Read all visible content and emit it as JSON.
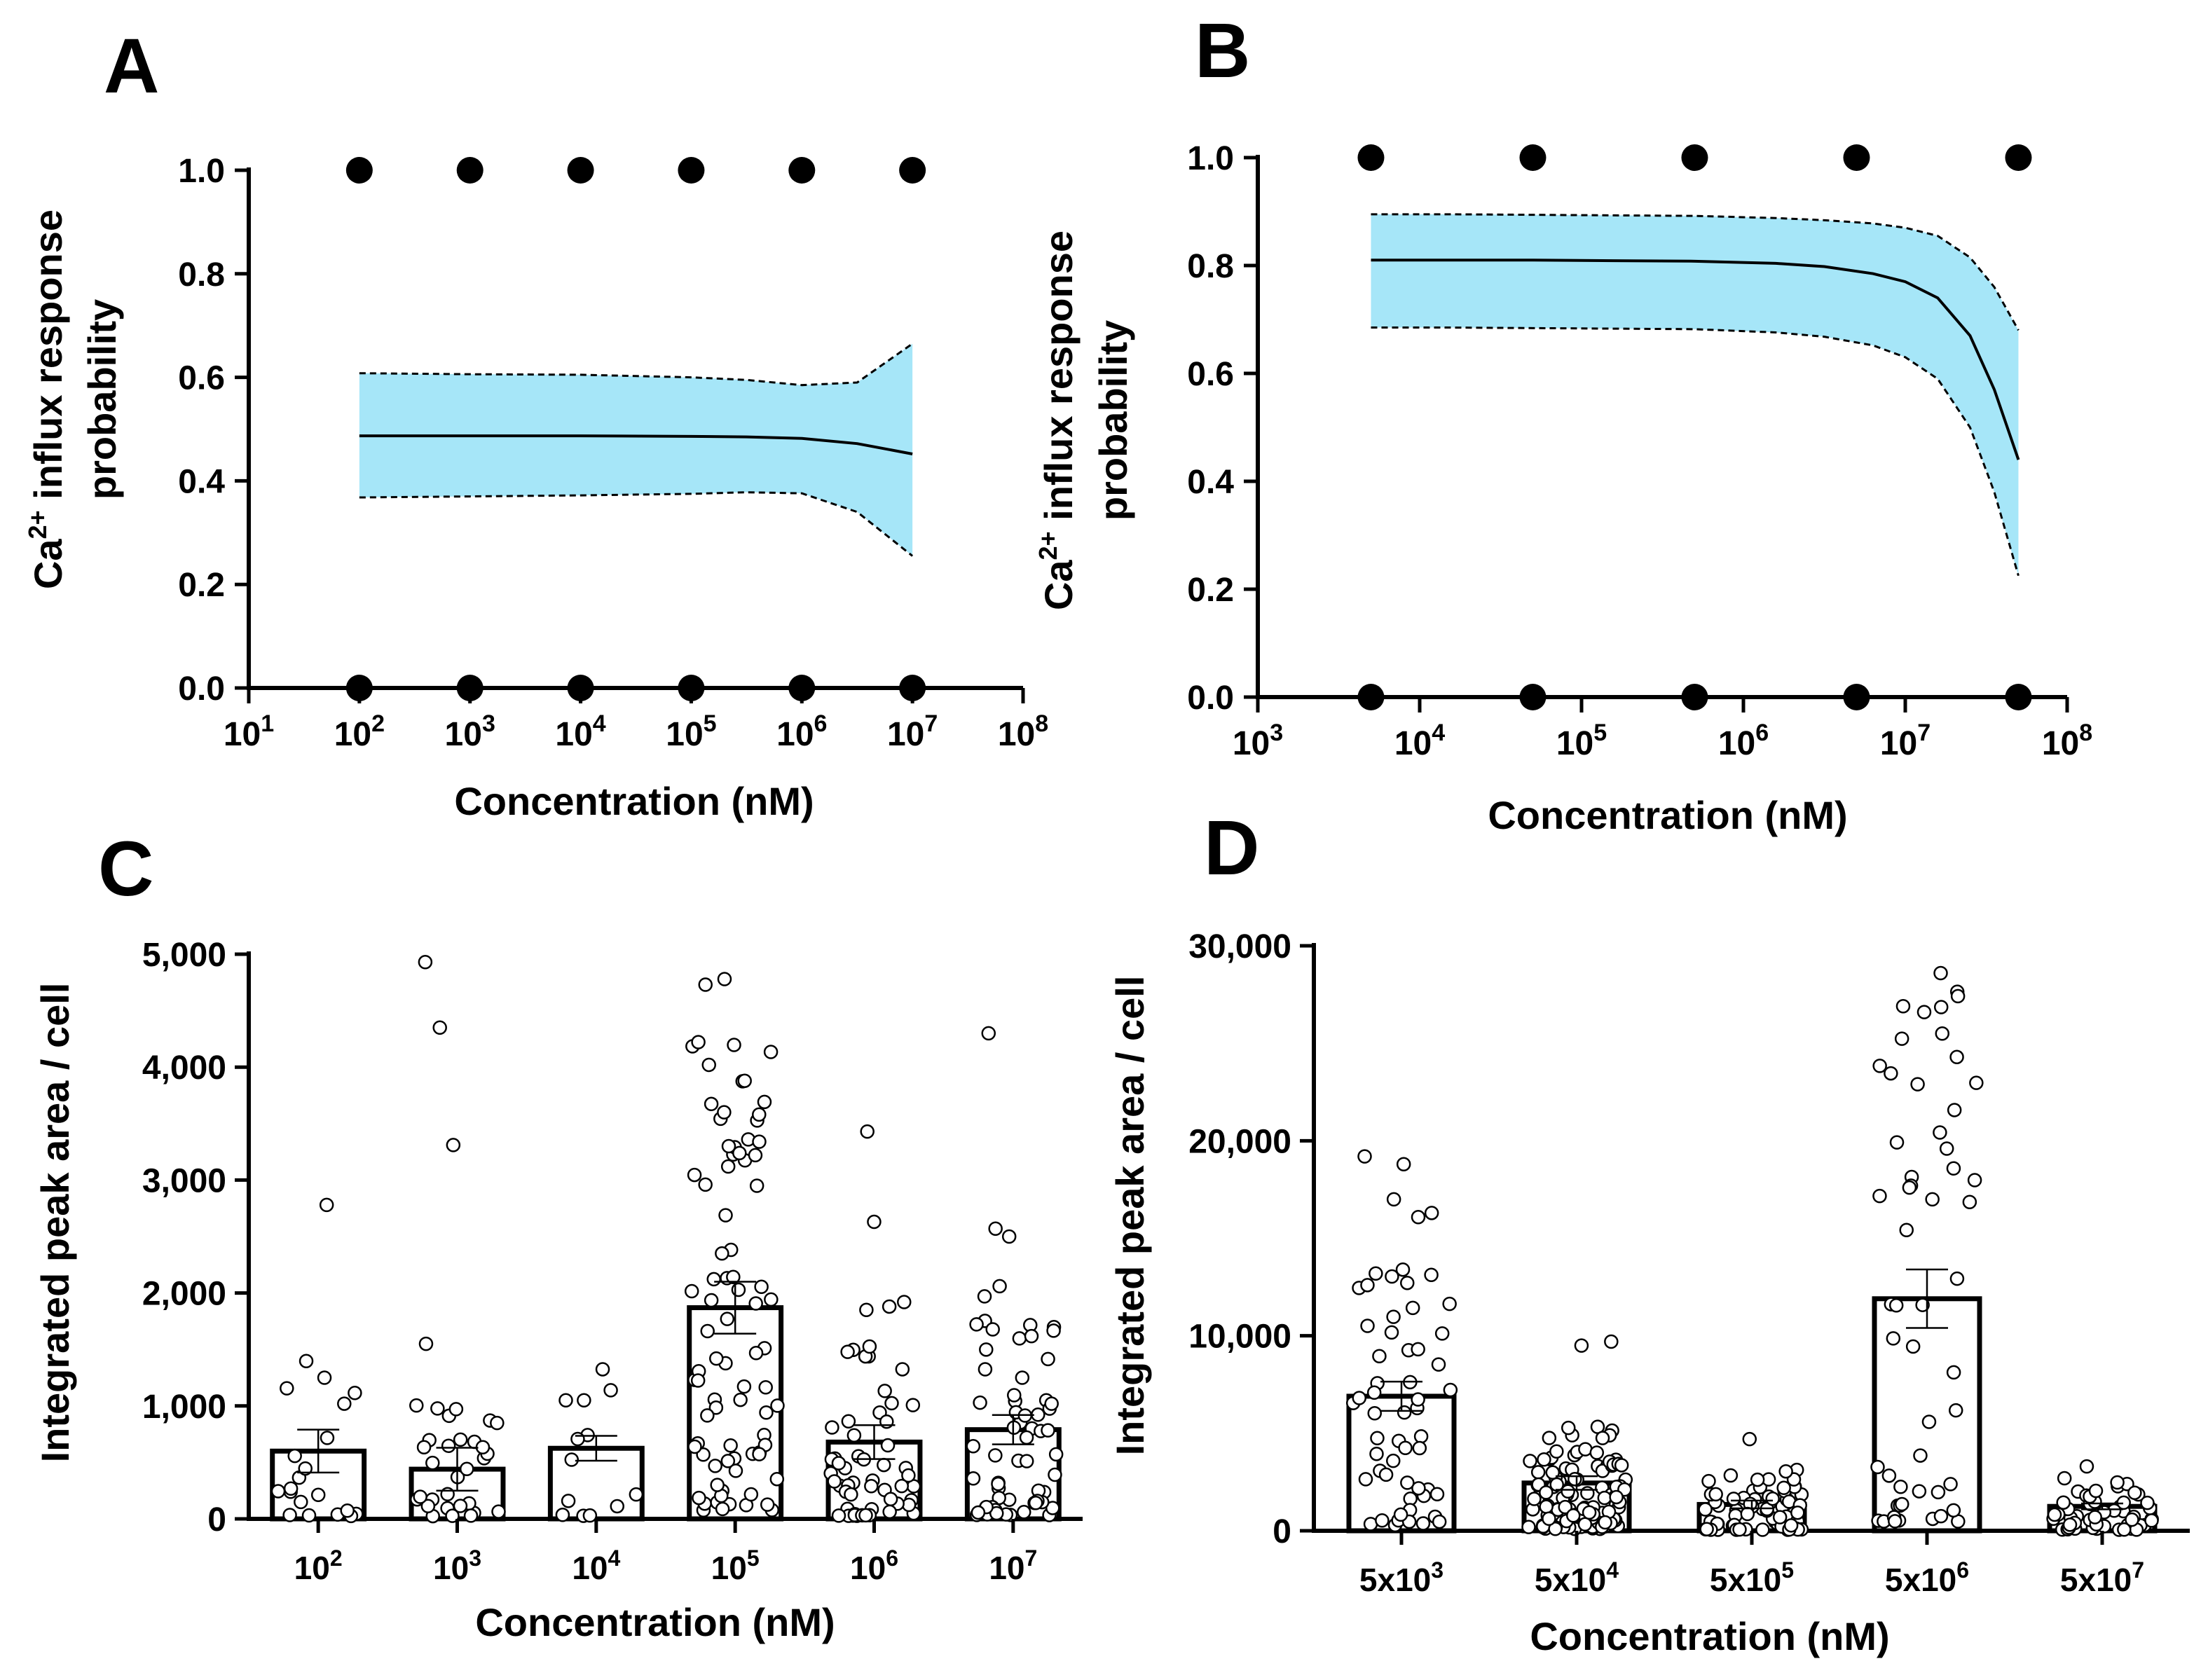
{
  "chart_data": [
    {
      "id": "A",
      "type": "scatter",
      "panel_label": "A",
      "xscale": "log",
      "xlim_exp": [
        1,
        8
      ],
      "ylim": [
        0,
        1
      ],
      "xlabel": "Concentration (nM)",
      "ylabel_lines": [
        "Ca2+ influx response",
        "probability"
      ],
      "ylabel_parts": {
        "base": "Ca",
        "sup": "2+",
        "rest": " influx response",
        "line2": "probability"
      },
      "xtick_base": "10",
      "xtick_exponents": [
        "1",
        "2",
        "3",
        "4",
        "5",
        "6",
        "7",
        "8"
      ],
      "yticks": [
        "0.0",
        "0.2",
        "0.4",
        "0.6",
        "0.8",
        "1.0"
      ],
      "points_top": {
        "log10_x": [
          2,
          3,
          4,
          5,
          6,
          7
        ],
        "y": 1.0
      },
      "points_bottom": {
        "log10_x": [
          2,
          3,
          4,
          5,
          6,
          7
        ],
        "y": 0.0
      },
      "fit": {
        "log10_x": [
          2,
          3,
          4,
          5,
          5.5,
          6,
          6.5,
          7
        ],
        "mean": [
          0.487,
          0.487,
          0.487,
          0.486,
          0.485,
          0.482,
          0.472,
          0.452
        ],
        "ci_low": [
          0.368,
          0.37,
          0.372,
          0.375,
          0.378,
          0.376,
          0.34,
          0.255
        ],
        "ci_high": [
          0.608,
          0.606,
          0.605,
          0.6,
          0.595,
          0.585,
          0.59,
          0.665
        ]
      },
      "band_color": "#a6e6f8"
    },
    {
      "id": "B",
      "type": "scatter",
      "panel_label": "B",
      "xscale": "log",
      "xlim_exp": [
        3,
        8
      ],
      "ylim": [
        0,
        1
      ],
      "xlabel": "Concentration (nM)",
      "ylabel_lines": [
        "Ca2+ influx response",
        "probability"
      ],
      "ylabel_parts": {
        "base": "Ca",
        "sup": "2+",
        "rest": " influx response",
        "line2": "probability"
      },
      "xtick_base": "10",
      "xtick_exponents": [
        "3",
        "4",
        "5",
        "6",
        "7",
        "8"
      ],
      "yticks": [
        "0.0",
        "0.2",
        "0.4",
        "0.6",
        "0.8",
        "1.0"
      ],
      "points_top": {
        "log10_x": [
          3.699,
          4.699,
          5.699,
          6.699,
          7.699
        ],
        "y": 1.0
      },
      "points_bottom": {
        "log10_x": [
          3.699,
          4.699,
          5.699,
          6.699,
          7.699
        ],
        "y": 0.0
      },
      "fit": {
        "log10_x": [
          3.699,
          4.2,
          4.7,
          5.2,
          5.7,
          6.2,
          6.5,
          6.8,
          7.0,
          7.2,
          7.4,
          7.55,
          7.699
        ],
        "mean": [
          0.81,
          0.81,
          0.81,
          0.809,
          0.808,
          0.804,
          0.798,
          0.785,
          0.77,
          0.74,
          0.67,
          0.57,
          0.44
        ],
        "ci_low": [
          0.685,
          0.685,
          0.684,
          0.683,
          0.682,
          0.676,
          0.668,
          0.652,
          0.63,
          0.59,
          0.5,
          0.38,
          0.225
        ],
        "ci_high": [
          0.895,
          0.895,
          0.894,
          0.893,
          0.892,
          0.888,
          0.884,
          0.878,
          0.87,
          0.855,
          0.815,
          0.76,
          0.68
        ]
      },
      "band_color": "#a6e6f8"
    },
    {
      "id": "C",
      "type": "bar",
      "panel_label": "C",
      "xlabel": "Concentration (nM)",
      "ylabel": "Integrated peak area / cell",
      "ylim": [
        0,
        5000
      ],
      "yticks": [
        "0",
        "1,000",
        "2,000",
        "3,000",
        "4,000",
        "5,000"
      ],
      "categories": [
        {
          "base": "10",
          "sup": "2"
        },
        {
          "base": "10",
          "sup": "3"
        },
        {
          "base": "10",
          "sup": "4"
        },
        {
          "base": "10",
          "sup": "5"
        },
        {
          "base": "10",
          "sup": "6"
        },
        {
          "base": "10",
          "sup": "7"
        }
      ],
      "values": [
        600,
        440,
        625,
        1870,
        680,
        790
      ],
      "sem": [
        190,
        190,
        110,
        230,
        150,
        130
      ],
      "n_points": [
        18,
        30,
        11,
        70,
        55,
        60
      ],
      "outliers": [
        [
          2780,
          1250,
          1020
        ],
        [
          4930,
          4350,
          3310,
          1550
        ],
        [
          1050,
          1050
        ],
        [
          4780,
          4730,
          4020,
          3600,
          3580,
          3360,
          3340,
          3300,
          3220,
          3120,
          2960,
          2950,
          2350
        ],
        [
          3430,
          2630,
          1920,
          1880,
          1850
        ],
        [
          4300,
          2570,
          2500,
          2060,
          1970
        ]
      ]
    },
    {
      "id": "D",
      "type": "bar",
      "panel_label": "D",
      "xlabel": "Concentration (nM)",
      "ylabel": "Integrated peak area / cell",
      "ylim": [
        0,
        30000
      ],
      "yticks": [
        "0",
        "10,000",
        "20,000",
        "30,000"
      ],
      "categories": [
        {
          "base": "5x10",
          "sup": "3"
        },
        {
          "base": "5x10",
          "sup": "4"
        },
        {
          "base": "5x10",
          "sup": "5"
        },
        {
          "base": "5x10",
          "sup": "6"
        },
        {
          "base": "5x10",
          "sup": "7"
        }
      ],
      "values": [
        6900,
        2450,
        1350,
        11900,
        1250
      ],
      "sem": [
        750,
        350,
        200,
        1500,
        150
      ],
      "n_points": [
        55,
        110,
        70,
        45,
        50
      ],
      "outliers": [
        [
          19200,
          18800,
          17000,
          16300
        ],
        [
          9700,
          9500
        ],
        [
          4700
        ],
        [
          28600,
          26900,
          26600,
          25500,
          22900,
          19600,
          17700,
          17600,
          17000
        ],
        [
          3300
        ]
      ]
    }
  ]
}
